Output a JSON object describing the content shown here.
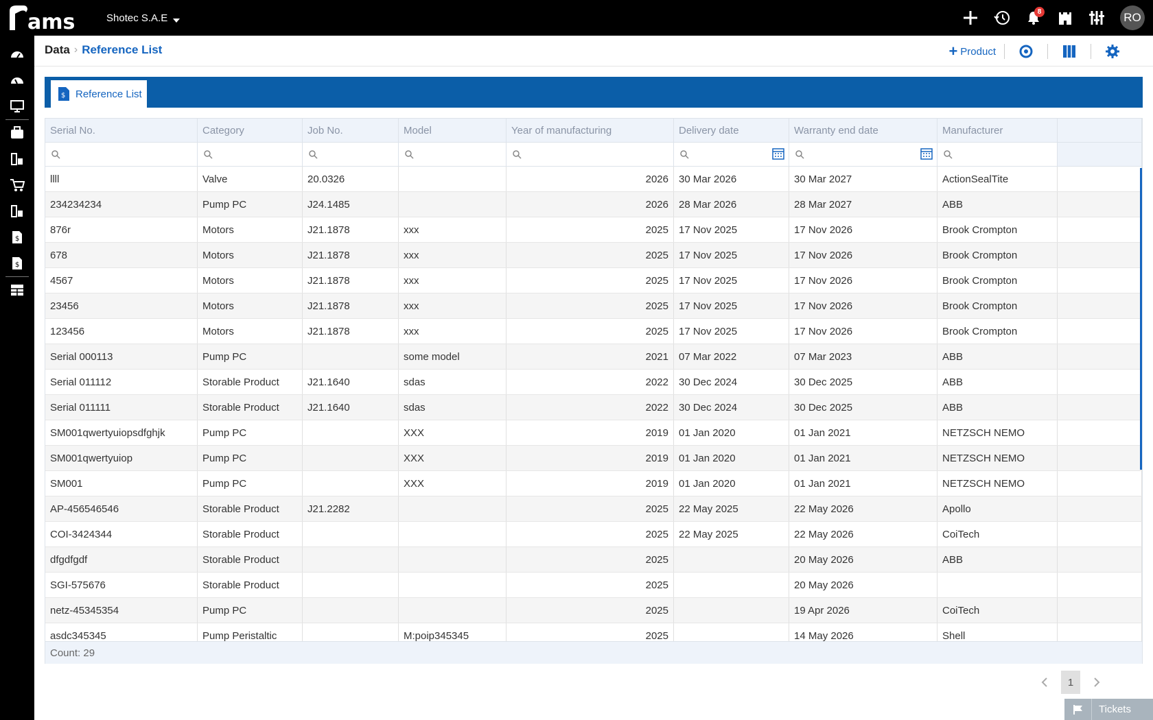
{
  "app": {
    "logo_text": "Rams",
    "company": "Shotec S.A.E",
    "notifications_count": "8",
    "user_initials": "RO"
  },
  "breadcrumb": {
    "root": "Data",
    "current": "Reference List"
  },
  "header": {
    "add_product_label": "Product"
  },
  "tab": {
    "label": "Reference List"
  },
  "columns": [
    "Serial No.",
    "Category",
    "Job No.",
    "Model",
    "Year of manufacturing",
    "Delivery date",
    "Warranty end date",
    "Manufacturer",
    ""
  ],
  "rows": [
    [
      "llll",
      "Valve",
      "20.0326",
      "",
      "2026",
      "30 Mar 2026",
      "30 Mar 2027",
      "ActionSealTite"
    ],
    [
      "234234234",
      "Pump PC",
      "J24.1485",
      "",
      "2026",
      "28 Mar 2026",
      "28 Mar 2027",
      "ABB"
    ],
    [
      "876r",
      "Motors",
      "J21.1878",
      "xxx",
      "2025",
      "17 Nov 2025",
      "17 Nov 2026",
      "Brook Crompton"
    ],
    [
      "678",
      "Motors",
      "J21.1878",
      "xxx",
      "2025",
      "17 Nov 2025",
      "17 Nov 2026",
      "Brook Crompton"
    ],
    [
      "4567",
      "Motors",
      "J21.1878",
      "xxx",
      "2025",
      "17 Nov 2025",
      "17 Nov 2026",
      "Brook Crompton"
    ],
    [
      "23456",
      "Motors",
      "J21.1878",
      "xxx",
      "2025",
      "17 Nov 2025",
      "17 Nov 2026",
      "Brook Crompton"
    ],
    [
      "123456",
      "Motors",
      "J21.1878",
      "xxx",
      "2025",
      "17 Nov 2025",
      "17 Nov 2026",
      "Brook Crompton"
    ],
    [
      "Serial 000113",
      "Pump PC",
      "",
      "some model",
      "2021",
      "07 Mar 2022",
      "07 Mar 2023",
      "ABB"
    ],
    [
      "Serial 011112",
      "Storable Product",
      "J21.1640",
      "sdas",
      "2022",
      "30 Dec 2024",
      "30 Dec 2025",
      "ABB"
    ],
    [
      "Serial 011111",
      "Storable Product",
      "J21.1640",
      "sdas",
      "2022",
      "30 Dec 2024",
      "30 Dec 2025",
      "ABB"
    ],
    [
      "SM001qwertyuiopsdfghjk",
      "Pump PC",
      "",
      "XXX",
      "2019",
      "01 Jan 2020",
      "01 Jan 2021",
      "NETZSCH NEMO"
    ],
    [
      "SM001qwertyuiop",
      "Pump PC",
      "",
      "XXX",
      "2019",
      "01 Jan 2020",
      "01 Jan 2021",
      "NETZSCH NEMO"
    ],
    [
      "SM001",
      "Pump PC",
      "",
      "XXX",
      "2019",
      "01 Jan 2020",
      "01 Jan 2021",
      "NETZSCH NEMO"
    ],
    [
      "AP-456546546",
      "Storable Product",
      "J21.2282",
      "",
      "2025",
      "22 May 2025",
      "22 May 2026",
      "Apollo"
    ],
    [
      "COI-3424344",
      "Storable Product",
      "",
      "",
      "2025",
      "22 May 2025",
      "22 May 2026",
      "CoiTech"
    ],
    [
      "dfgdfgdf",
      "Storable Product",
      "",
      "",
      "2025",
      "",
      "20 May 2026",
      "ABB"
    ],
    [
      "SGI-575676",
      "Storable Product",
      "",
      "",
      "2025",
      "",
      "20 May 2026",
      ""
    ],
    [
      "netz-45345354",
      "Pump PC",
      "",
      "",
      "2025",
      "",
      "19 Apr 2026",
      "CoiTech"
    ],
    [
      "asdc345345",
      "Pump Peristaltic",
      "",
      "M:poip345345",
      "2025",
      "",
      "14 May 2026",
      "Shell"
    ]
  ],
  "footer": {
    "count_label": "Count: 29"
  },
  "pager": {
    "current_page": "1"
  },
  "tickets": {
    "label": "Tickets"
  },
  "colors": {
    "brand_blue": "#0b5ea8",
    "link_blue": "#1565c0",
    "bar_black": "#000000",
    "badge_red": "#e53935"
  }
}
